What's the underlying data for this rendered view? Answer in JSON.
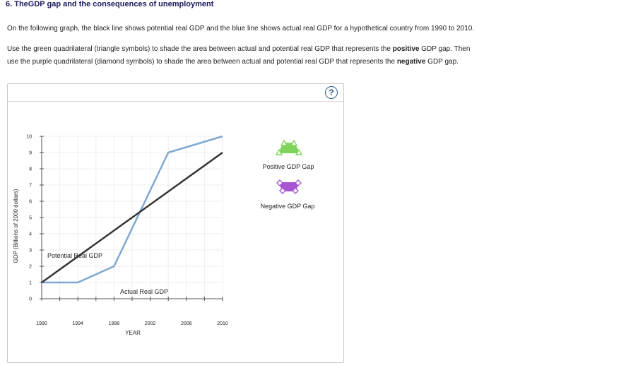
{
  "question": {
    "title": "6. TheGDP gap and the consequences of unemployment",
    "intro": "On the following graph, the black line shows potential real GDP and the blue line shows actual real GDP for a hypothetical country from 1990 to 2010.",
    "instr_a": "Use the green quadrilateral (triangle symbols) to shade the area between actual and potential real GDP that represents the ",
    "instr_b": "positive",
    "instr_c": " GDP gap. Then",
    "instr_d": "use the purple quadrilateral (diamond symbols) to shade the area between actual and potential real GDP that represents the ",
    "instr_e": "negative",
    "instr_f": " GDP gap."
  },
  "help": {
    "label": "?"
  },
  "colors": {
    "potential": "#333333",
    "actual": "#7fa8d1",
    "positive": "#7ed35a",
    "negative": "#a855d1",
    "grid": "#eeeeee"
  },
  "chart_data": {
    "type": "line",
    "xlabel": "YEAR",
    "ylabel": "GDP (Billions of 2000 dollars)",
    "xlim": [
      1990,
      2010
    ],
    "ylim": [
      0,
      10
    ],
    "x_ticks": [
      "1990",
      "1994",
      "1998",
      "2002",
      "2006",
      "2010"
    ],
    "y_ticks": [
      "0",
      "1",
      "2",
      "3",
      "4",
      "5",
      "6",
      "7",
      "8",
      "9",
      "10"
    ],
    "series": [
      {
        "name": "Potential Real GDP",
        "x": [
          1990,
          2010
        ],
        "y": [
          1,
          9
        ]
      },
      {
        "name": "Actual Real GDP",
        "x": [
          1990,
          1994,
          1998,
          2004,
          2010
        ],
        "y": [
          1,
          1,
          2,
          9,
          10
        ]
      }
    ],
    "legend": [
      {
        "label": "Positive GDP Gap",
        "symbol": "triangle"
      },
      {
        "label": "Negative GDP Gap",
        "symbol": "diamond"
      }
    ],
    "line_labels": {
      "potential": "Potential Real GDP",
      "actual": "Actual Real GDP"
    },
    "grid": true
  }
}
